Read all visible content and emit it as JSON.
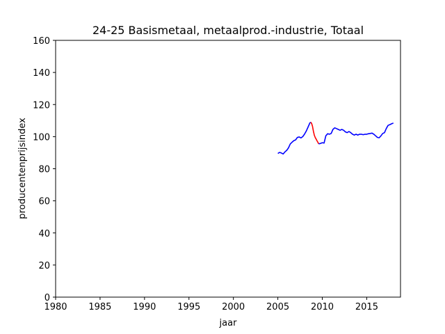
{
  "chart_data": {
    "type": "line",
    "title": "24-25 Basismetaal, metaalprod.-industrie, Totaal",
    "xlabel": "jaar",
    "ylabel": "producentenprijsindex",
    "xlim": [
      1980,
      2018.8
    ],
    "ylim": [
      0,
      160
    ],
    "xticks": [
      1980,
      1985,
      1990,
      1995,
      2000,
      2005,
      2010,
      2015
    ],
    "yticks": [
      0,
      20,
      40,
      60,
      80,
      100,
      120,
      140,
      160
    ],
    "grid": false,
    "legend": "none",
    "series": [
      {
        "color": "#0000ff",
        "x": [
          2005.0,
          2005.2,
          2005.4,
          2005.6,
          2005.8,
          2006.0,
          2006.2,
          2006.4,
          2006.6,
          2006.8,
          2007.0,
          2007.2,
          2007.4,
          2007.6,
          2007.8,
          2008.0,
          2008.2,
          2008.4,
          2008.6,
          2008.7
        ],
        "y": [
          89.5,
          90.2,
          89.8,
          89.2,
          90.5,
          91.5,
          93.0,
          95.5,
          96.5,
          97.5,
          98.0,
          99.5,
          99.8,
          99.2,
          100.0,
          101.5,
          103.5,
          106.0,
          108.5,
          109.0
        ]
      },
      {
        "color": "#ff0000",
        "x": [
          2008.7,
          2008.8,
          2008.9,
          2009.0,
          2009.1,
          2009.2,
          2009.3,
          2009.4,
          2009.5,
          2009.6
        ],
        "y": [
          109.0,
          108.2,
          106.5,
          103.5,
          101.0,
          99.5,
          98.5,
          97.5,
          96.5,
          95.5
        ]
      },
      {
        "color": "#0000ff",
        "x": [
          2009.6,
          2009.8,
          2010.0,
          2010.2,
          2010.4,
          2010.6,
          2010.8,
          2011.0,
          2011.2,
          2011.4,
          2011.6,
          2011.8,
          2012.0,
          2012.2,
          2012.4,
          2012.6,
          2012.8,
          2013.0,
          2013.2,
          2013.4,
          2013.6,
          2013.8,
          2014.0,
          2014.2,
          2014.4,
          2014.6,
          2014.8,
          2015.0,
          2015.2,
          2015.4,
          2015.6,
          2015.8,
          2016.0,
          2016.2,
          2016.4,
          2016.6,
          2016.8,
          2017.0,
          2017.2,
          2017.4,
          2017.6,
          2017.8,
          2018.0
        ],
        "y": [
          95.5,
          95.8,
          96.2,
          96.0,
          100.5,
          101.8,
          101.5,
          102.0,
          104.5,
          105.5,
          105.0,
          104.5,
          104.0,
          104.5,
          104.0,
          103.0,
          102.5,
          103.2,
          102.5,
          101.5,
          101.0,
          101.5,
          101.0,
          101.5,
          101.5,
          101.2,
          101.5,
          101.5,
          101.8,
          102.0,
          102.2,
          101.5,
          100.5,
          99.5,
          99.3,
          100.5,
          102.0,
          102.5,
          105.0,
          107.0,
          107.5,
          108.0,
          108.5
        ]
      }
    ]
  }
}
